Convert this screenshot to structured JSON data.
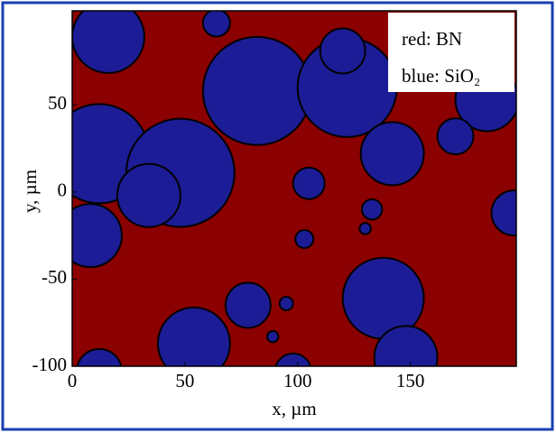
{
  "chart_data": {
    "type": "map",
    "xlabel": "x, µm",
    "ylabel": "y, µm",
    "xlim": [
      0,
      197
    ],
    "ylim": [
      -100,
      104
    ],
    "xticks": [
      0,
      50,
      100,
      150
    ],
    "yticks": [
      -100,
      -50,
      0,
      50
    ],
    "legend": [
      "red: BN",
      "blue: SiO₂"
    ],
    "background_color": "#8b0000",
    "region_color": "#1c1c96",
    "regions": [
      {
        "x": 16,
        "y": 89,
        "r": 16
      },
      {
        "x": 64,
        "y": 97,
        "r": 6
      },
      {
        "x": 82,
        "y": 58,
        "r": 24
      },
      {
        "x": 122,
        "y": 60,
        "r": 22
      },
      {
        "x": 120,
        "y": 81,
        "r": 10
      },
      {
        "x": 184,
        "y": 53,
        "r": 14
      },
      {
        "x": 170,
        "y": 32,
        "r": 8
      },
      {
        "x": 12,
        "y": 22,
        "r": 22
      },
      {
        "x": 48,
        "y": 11,
        "r": 24
      },
      {
        "x": 34,
        "y": -2,
        "r": 14
      },
      {
        "x": 142,
        "y": 22,
        "r": 14
      },
      {
        "x": 105,
        "y": 5,
        "r": 7
      },
      {
        "x": 196,
        "y": -12,
        "r": 10
      },
      {
        "x": 8,
        "y": -25,
        "r": 14
      },
      {
        "x": 133,
        "y": -10,
        "r": 4.5
      },
      {
        "x": 130,
        "y": -21,
        "r": 2.5
      },
      {
        "x": 103,
        "y": -27,
        "r": 4
      },
      {
        "x": 138,
        "y": -61,
        "r": 18
      },
      {
        "x": 78,
        "y": -65,
        "r": 10
      },
      {
        "x": 95,
        "y": -64,
        "r": 3
      },
      {
        "x": 54,
        "y": -87,
        "r": 16
      },
      {
        "x": 89,
        "y": -83,
        "r": 2.5
      },
      {
        "x": 148,
        "y": -95,
        "r": 14
      },
      {
        "x": 12,
        "y": -103,
        "r": 10
      },
      {
        "x": 98,
        "y": -103,
        "r": 8
      }
    ]
  }
}
